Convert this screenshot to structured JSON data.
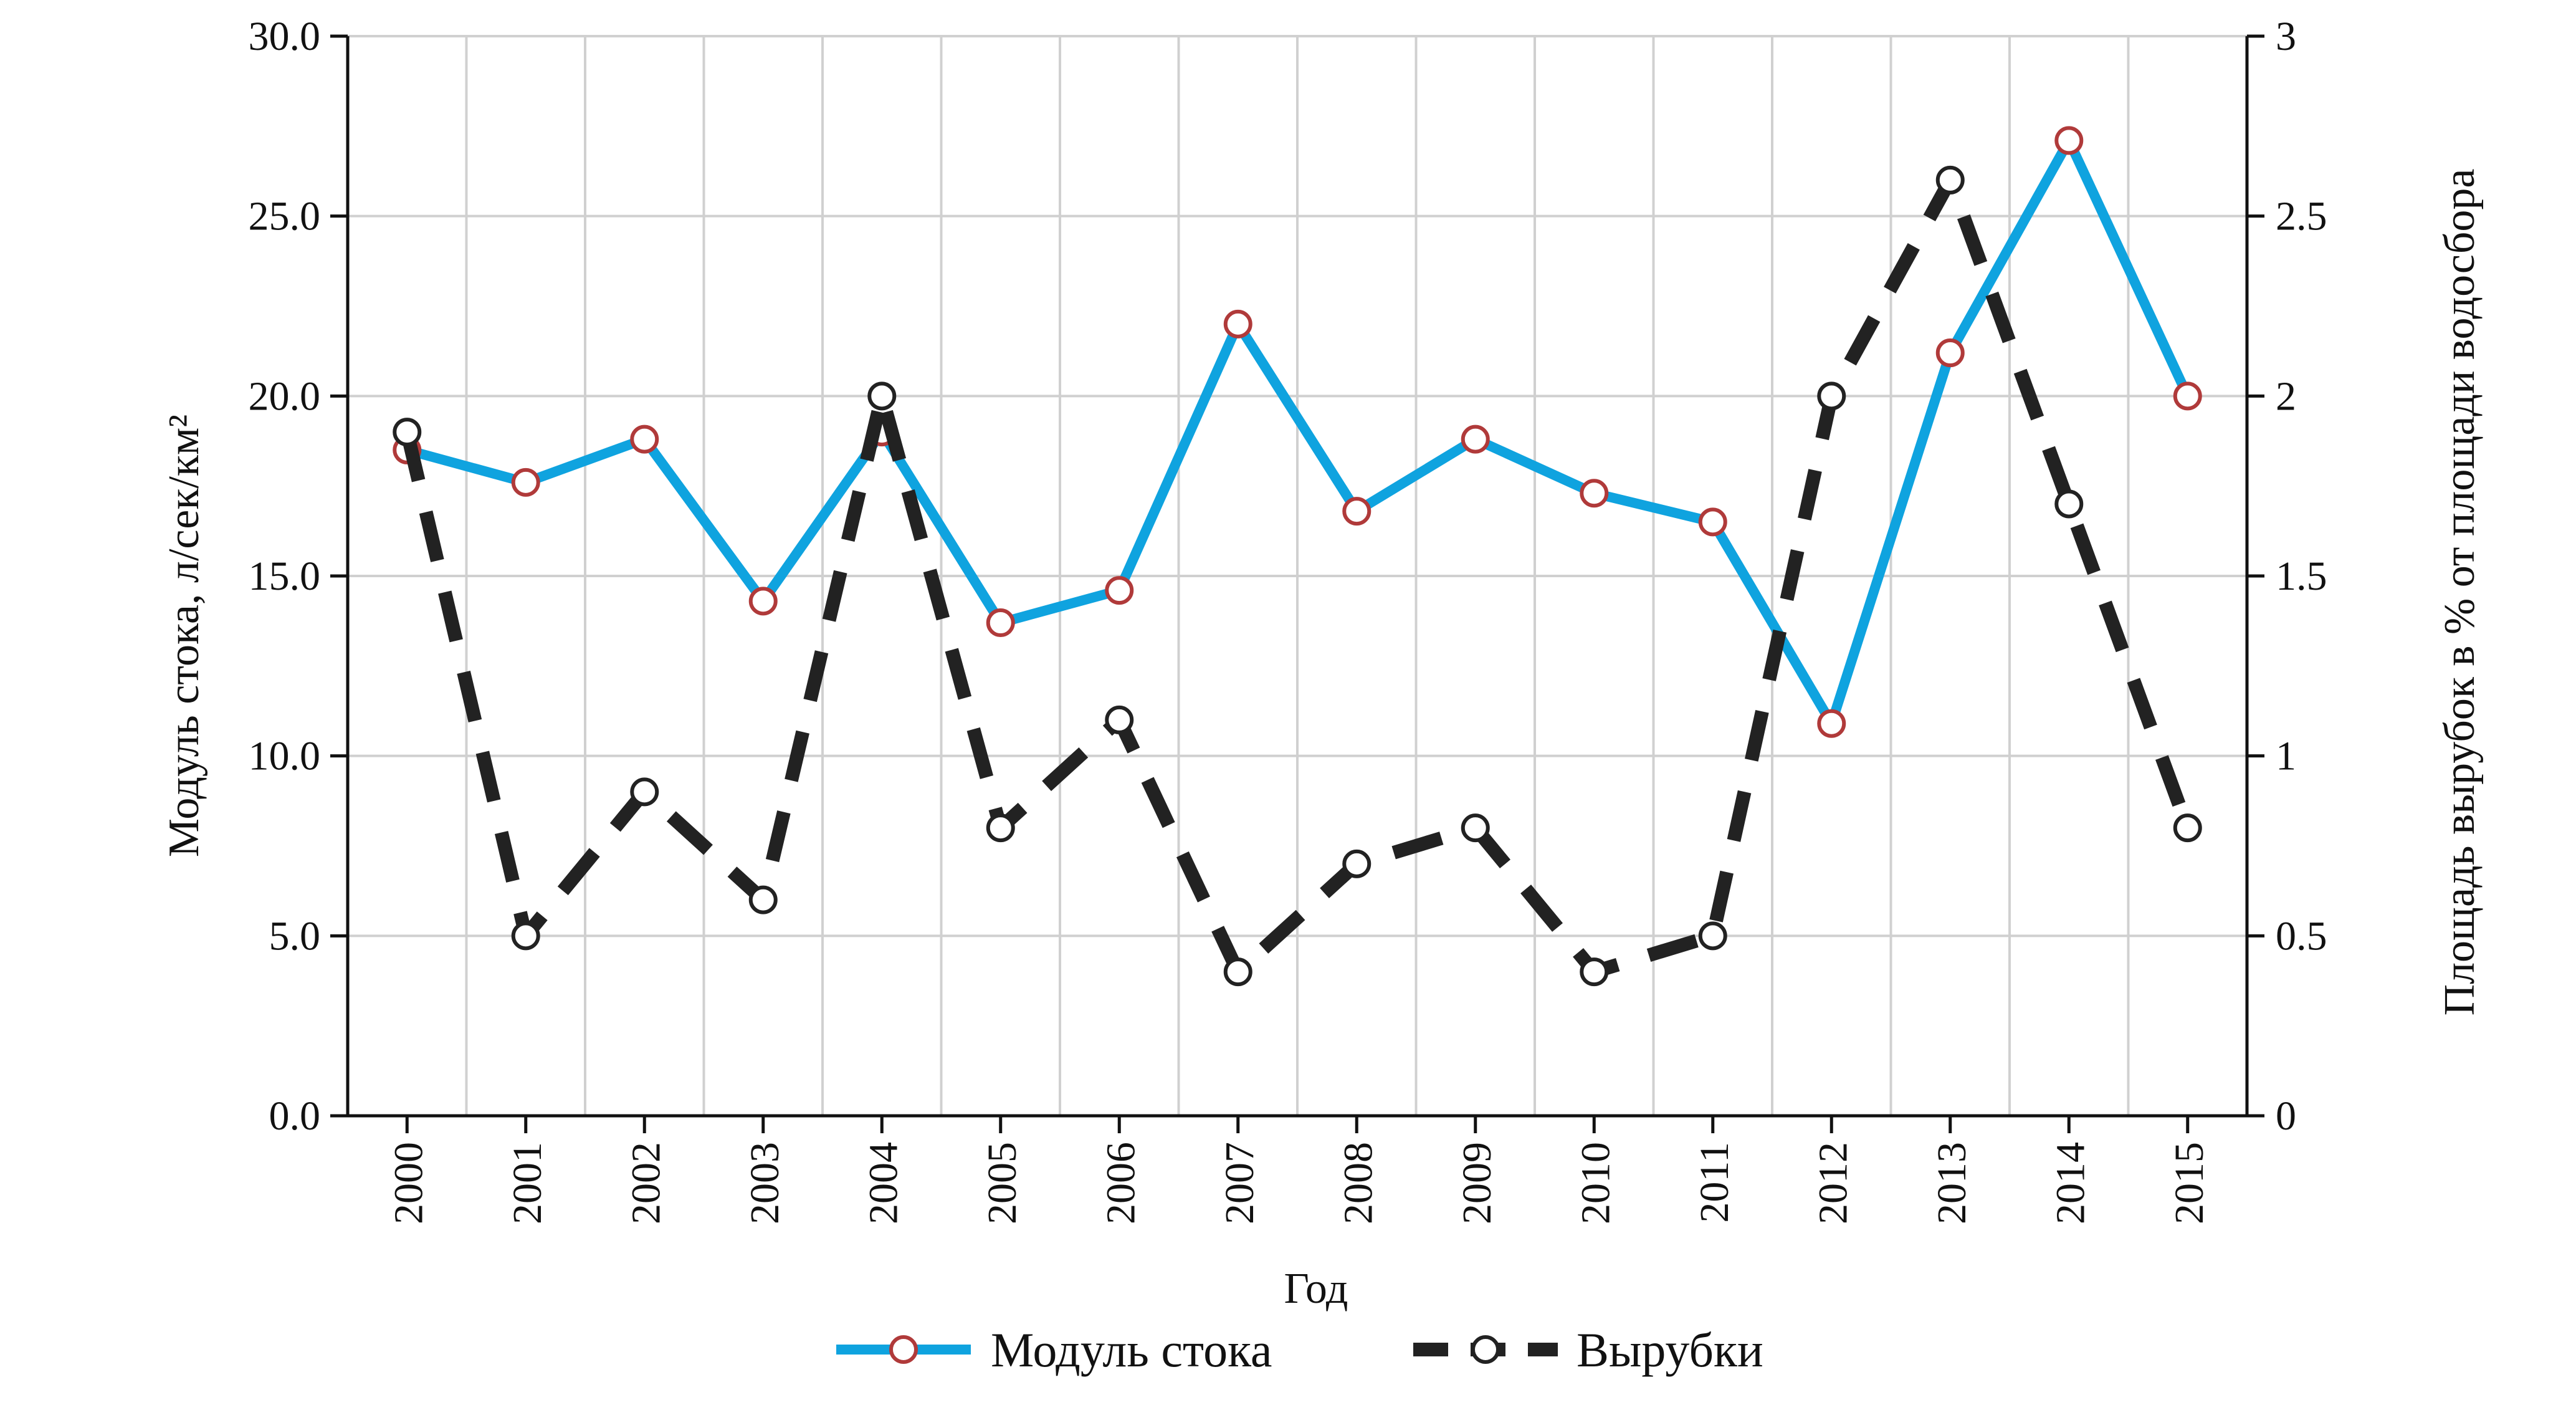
{
  "chart_data": {
    "type": "line",
    "title": "",
    "xlabel": "Год",
    "ylabel_left": "Модуль стока, л/сек/км²",
    "ylabel_right": "Площадь вырубок в % от площади водосбора",
    "categories": [
      "2000",
      "2001",
      "2002",
      "2003",
      "2004",
      "2005",
      "2006",
      "2007",
      "2008",
      "2009",
      "2010",
      "2011",
      "2012",
      "2013",
      "2014",
      "2015"
    ],
    "ylim_left": [
      0,
      30
    ],
    "ylim_right": [
      0,
      3
    ],
    "yticks_left": [
      "0.0",
      "5.0",
      "10.0",
      "15.0",
      "20.0",
      "25.0",
      "30.0"
    ],
    "yticks_right": [
      "0",
      "0.5",
      "1",
      "1.5",
      "2",
      "2.5",
      "3"
    ],
    "grid": true,
    "legend_position": "bottom",
    "series": [
      {
        "name": "Модуль стока",
        "axis": "left",
        "color": "#0fa3df",
        "marker_edge": "#b03a3a",
        "style": "solid",
        "values": [
          18.5,
          17.6,
          18.8,
          14.3,
          19.0,
          13.7,
          14.6,
          22.0,
          16.8,
          18.8,
          17.3,
          16.5,
          10.9,
          21.2,
          27.1,
          20.0
        ]
      },
      {
        "name": "Вырубки",
        "axis": "right",
        "color": "#222222",
        "marker_edge": "#222222",
        "style": "dashed",
        "values": [
          1.9,
          0.5,
          0.9,
          0.6,
          2.0,
          0.8,
          1.1,
          0.4,
          0.7,
          0.8,
          0.4,
          0.5,
          2.0,
          2.6,
          1.7,
          0.8
        ]
      }
    ]
  }
}
